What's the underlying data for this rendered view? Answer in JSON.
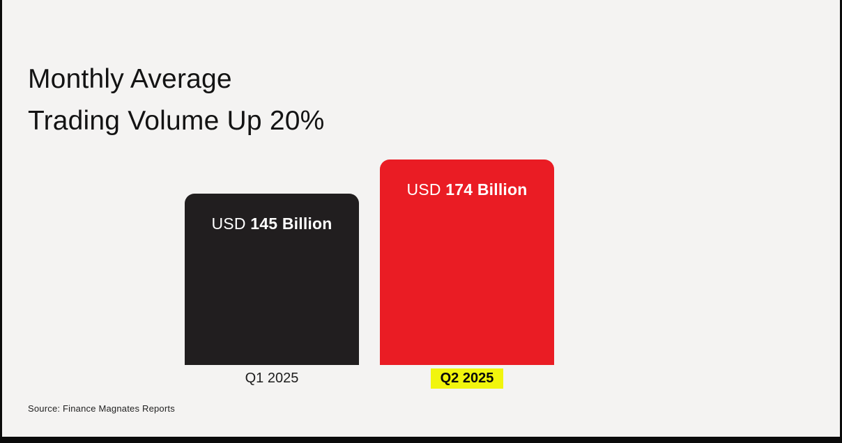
{
  "header": {
    "title_line1": "Monthly Average",
    "title_line2": "Trading Volume Up 20%"
  },
  "footer": {
    "source": "Source: Finance Magnates Reports"
  },
  "colors": {
    "background": "#f4f3f2",
    "frame_edge": "#0b0b0b",
    "bar_q1": "#211e1f",
    "bar_q2": "#ea1c24",
    "highlight_yellow": "#f1f50d",
    "bar_label_text": "#ffffff",
    "title_text": "#131313"
  },
  "chart_data": {
    "type": "bar",
    "title": "Monthly Average Trading Volume Up 20%",
    "categories": [
      "Q1 2025",
      "Q2 2025"
    ],
    "series": [
      {
        "name": "Monthly Average Trading Volume (USD Billion)",
        "values": [
          145,
          174
        ]
      }
    ],
    "value_labels": [
      {
        "prefix": "USD ",
        "value": "145 Billion"
      },
      {
        "prefix": "USD ",
        "value": "174 Billion"
      }
    ],
    "bar_colors": [
      "#211e1f",
      "#ea1c24"
    ],
    "highlighted_category": "Q2 2025",
    "highlight_color": "#f1f50d",
    "ylim": [
      0,
      174
    ],
    "grid": false,
    "legend": false,
    "source": "Source: Finance Magnates Reports"
  }
}
